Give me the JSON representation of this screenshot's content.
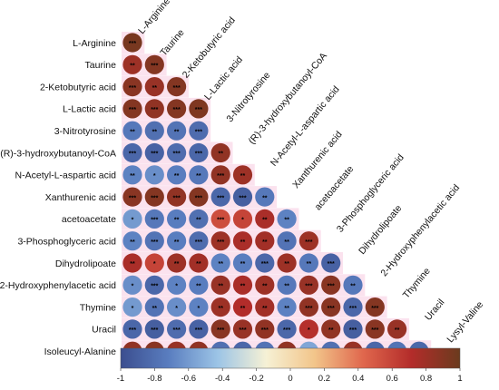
{
  "chart_data": {
    "type": "heatmap",
    "shape": "lower-triangle-circles",
    "labels": [
      "L-Arginine",
      "Taurine",
      "2-Ketobutyric acid",
      "L-Lactic acid",
      "3-Nitrotyrosine",
      "(R)-3-hydroxybutanoyl-CoA",
      "N-Acetyl-L-aspartic acid",
      "Xanthurenic acid",
      "acetoacetate",
      "3-Phosphoglyceric acid",
      "Dihydrolipoate",
      "2-Hydroxyphenylacetic acid",
      "Thymine",
      "Uracil",
      "Isoleucyl-Alanine"
    ],
    "column_labels": [
      "L-Arginine",
      "Taurine",
      "2-Ketobutyric acid",
      "L-Lactic acid",
      "3-Nitrotyrosine",
      "(R)-3-hydroxybutanoyl-CoA",
      "N-Acetyl-L-aspartic acid",
      "Xanthurenic acid",
      "acetoacetate",
      "3-Phosphoglyceric acid",
      "Dihydrolipoate",
      "2-Hydroxyphenylacetic acid",
      "Thymine",
      "Uracil",
      "Lysyl-Valine"
    ],
    "rows": [
      {
        "values": [
          0.95
        ],
        "stars": [
          "***"
        ]
      },
      {
        "values": [
          0.8,
          0.9
        ],
        "stars": [
          "**",
          "***"
        ]
      },
      {
        "values": [
          0.88,
          0.82,
          0.9
        ],
        "stars": [
          "***",
          "**",
          "***"
        ]
      },
      {
        "values": [
          0.9,
          0.85,
          0.9,
          0.92
        ],
        "stars": [
          "***",
          "***",
          "***",
          "***"
        ]
      },
      {
        "values": [
          -0.75,
          -0.8,
          -0.78,
          -0.82
        ],
        "stars": [
          "**",
          "**",
          "**",
          "***"
        ]
      },
      {
        "values": [
          -0.85,
          -0.88,
          -0.82,
          -0.85,
          0.85
        ],
        "stars": [
          "***",
          "***",
          "***",
          "***",
          "**"
        ]
      },
      {
        "values": [
          -0.7,
          -0.65,
          -0.72,
          -0.75,
          0.85,
          0.8
        ],
        "stars": [
          "**",
          "*",
          "**",
          "**",
          "***",
          "**"
        ]
      },
      {
        "values": [
          0.88,
          0.9,
          0.85,
          0.9,
          -0.85,
          -0.9,
          -0.75
        ],
        "stars": [
          "***",
          "***",
          "***",
          "***",
          "***",
          "***",
          "**"
        ]
      },
      {
        "values": [
          -0.6,
          -0.75,
          -0.72,
          -0.8,
          0.55,
          0.6,
          0.75,
          -0.7
        ],
        "stars": [
          "*",
          "***",
          "**",
          "**",
          "***",
          "*",
          "**",
          "**"
        ]
      },
      {
        "values": [
          -0.7,
          -0.78,
          -0.72,
          -0.82,
          0.8,
          0.75,
          0.78,
          -0.78,
          0.8
        ],
        "stars": [
          "**",
          "***",
          "**",
          "***",
          "***",
          "**",
          "**",
          "**",
          "***"
        ]
      },
      {
        "values": [
          0.75,
          0.6,
          0.8,
          0.78,
          -0.7,
          -0.72,
          -0.85,
          0.8,
          -0.75,
          -0.88
        ],
        "stars": [
          "**",
          "*",
          "**",
          "**",
          "**",
          "**",
          "***",
          "**",
          "**",
          "***"
        ]
      },
      {
        "values": [
          -0.65,
          -0.85,
          -0.7,
          -0.72,
          0.82,
          0.75,
          0.8,
          -0.75,
          0.82,
          0.88,
          -0.75
        ],
        "stars": [
          "*",
          "***",
          "*",
          "**",
          "**",
          "**",
          "**",
          "**",
          "***",
          "***",
          "**"
        ]
      },
      {
        "values": [
          -0.6,
          -0.78,
          -0.65,
          -0.7,
          0.8,
          0.72,
          0.78,
          -0.7,
          0.85,
          0.88,
          -0.85,
          0.9
        ],
        "stars": [
          "*",
          "**",
          "*",
          "*",
          "**",
          "**",
          "**",
          "**",
          "***",
          "***",
          "***",
          "***"
        ]
      },
      {
        "values": [
          -0.85,
          -0.9,
          -0.82,
          -0.88,
          0.88,
          0.82,
          0.85,
          -0.85,
          0.7,
          0.85,
          -0.9,
          0.88,
          0.82
        ],
        "stars": [
          "***",
          "***",
          "***",
          "***",
          "***",
          "***",
          "***",
          "***",
          "*",
          "**",
          "***",
          "***",
          "**"
        ]
      },
      {
        "values": [
          0.85,
          0.88,
          0.82,
          0.85,
          -0.8,
          -0.85,
          -0.78,
          0.85,
          -0.55,
          -0.8,
          0.82,
          -0.85,
          -0.78,
          -0.85
        ],
        "stars": [
          "***",
          "***",
          "***",
          "***",
          "***",
          "***",
          "***",
          "***",
          "*",
          "***",
          "***",
          "***",
          "***",
          "***"
        ]
      }
    ],
    "colorbar": {
      "range": [
        -1,
        1
      ],
      "ticks": [
        "-1",
        "-0.8",
        "-0.6",
        "-0.4",
        "-0.2",
        "0",
        "0.2",
        "0.4",
        "0.6",
        "0.8",
        "1"
      ],
      "colors": [
        "#3b4e8f",
        "#5a7ec0",
        "#9cc4e6",
        "#f6f1d5",
        "#f2c58a",
        "#e0674d",
        "#b32c2a",
        "#6b3b1e"
      ]
    },
    "highlight_color": "#fbe2ee"
  }
}
